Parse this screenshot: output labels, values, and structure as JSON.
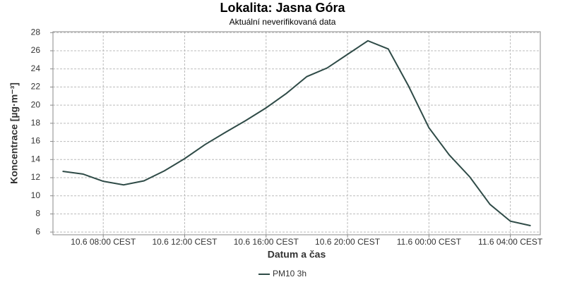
{
  "chart_data": {
    "type": "line",
    "title": "Lokalita: Jasna Góra",
    "subtitle": "Aktuální neverifikovaná data",
    "x_label": "Datum a čas",
    "y_label": "Koncentrace [µg·m⁻³]",
    "x": [
      6,
      7,
      8,
      9,
      10,
      11,
      12,
      13,
      14,
      15,
      16,
      17,
      18,
      19,
      20,
      21,
      22,
      23,
      24,
      25,
      26,
      27,
      28,
      29
    ],
    "series": [
      {
        "name": "PM10 3h",
        "color": "#2f4b47",
        "values": [
          12.7,
          12.4,
          11.6,
          11.2,
          11.65,
          12.75,
          14.1,
          15.65,
          17.0,
          18.3,
          19.7,
          21.3,
          23.15,
          24.1,
          25.6,
          27.1,
          26.2,
          22.1,
          17.5,
          14.5,
          12.1,
          9.05,
          7.2,
          6.7
        ]
      }
    ],
    "xlim": [
      5.53,
      29.47
    ],
    "xticks": [
      {
        "value": 8,
        "label": "10.6 08:00 CEST"
      },
      {
        "value": 12,
        "label": "10.6 12:00 CEST"
      },
      {
        "value": 16,
        "label": "10.6 16:00 CEST"
      },
      {
        "value": 20,
        "label": "10.6 20:00 CEST"
      },
      {
        "value": 24,
        "label": "11.6 00:00 CEST"
      },
      {
        "value": 28,
        "label": "11.6 04:00 CEST"
      }
    ],
    "ylim": [
      5.7,
      28.1
    ],
    "yticks": [
      6,
      8,
      10,
      12,
      14,
      16,
      18,
      20,
      22,
      24,
      26,
      28
    ],
    "grid": true
  }
}
